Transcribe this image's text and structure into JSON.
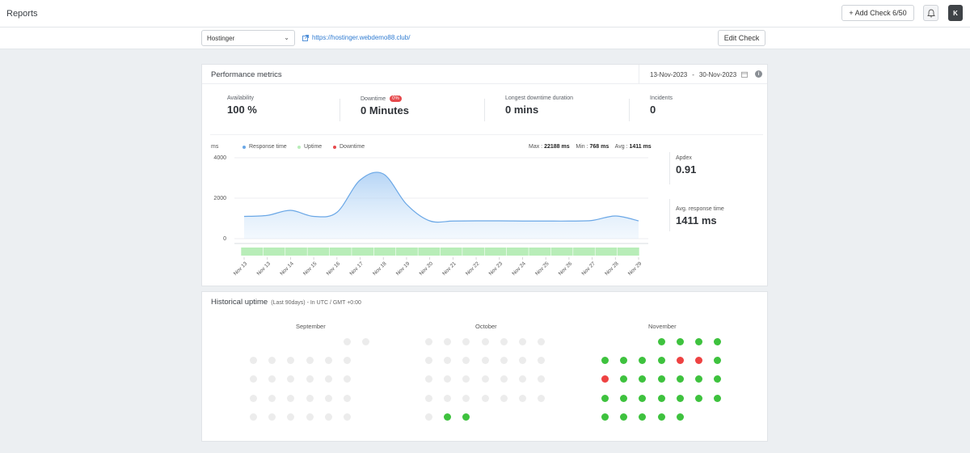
{
  "header": {
    "title": "Reports",
    "add_check_label": "+ Add Check 6/50",
    "avatar_initial": "K"
  },
  "subbar": {
    "monitor_selected": "Hostinger",
    "url": "https://hostinger.webdemo88.club/",
    "edit_label": "Edit Check"
  },
  "performance": {
    "title": "Performance metrics",
    "date_from": "13-Nov-2023",
    "date_sep": "-",
    "date_to": "30-Nov-2023",
    "metrics": [
      {
        "label": "Availability",
        "value": "100 %"
      },
      {
        "label": "Downtime",
        "badge": "0%",
        "value": "0 Minutes"
      },
      {
        "label": "Longest downtime duration",
        "value": "0 mins"
      },
      {
        "label": "Incidents",
        "value": "0"
      }
    ],
    "unit": "ms",
    "legend": [
      "Response time",
      "Uptime",
      "Downtime"
    ],
    "stats": {
      "max_label": "Max :",
      "max": "22188 ms",
      "min_label": "Min :",
      "min": "768 ms",
      "avg_label": "Avg :",
      "avg": "1411 ms"
    },
    "apdex_label": "Apdex",
    "apdex_value": "0.91",
    "avg_label": "Avg. response time",
    "avg_value": "1411 ms"
  },
  "colors": {
    "response": "#6aa7e6",
    "uptime": "#b8edb8",
    "downtime": "#e6494c",
    "green": "#3ec23e",
    "red": "#ee4242",
    "grey": "#ececec"
  },
  "chart_data": {
    "type": "area",
    "ylabel": "ms",
    "ylim": [
      0,
      4000
    ],
    "yticks": [
      "4000",
      "2000",
      "0"
    ],
    "x": [
      "Nov 13",
      "Nov 13",
      "Nov 14",
      "Nov 15",
      "Nov 16",
      "Nov 17",
      "Nov 18",
      "Nov 19",
      "Nov 20",
      "Nov 21",
      "Nov 22",
      "Nov 23",
      "Nov 24",
      "Nov 25",
      "Nov 26",
      "Nov 27",
      "Nov 28",
      "Nov 29"
    ],
    "series": [
      {
        "name": "Response time",
        "values": [
          1100,
          1150,
          1400,
          1100,
          1300,
          2900,
          3200,
          1700,
          880,
          870,
          880,
          880,
          870,
          870,
          870,
          900,
          1120,
          880
        ]
      }
    ],
    "uptime_bar": "Uptime",
    "legend": [
      "Response time",
      "Uptime",
      "Downtime"
    ]
  },
  "history": {
    "title": "Historical uptime",
    "subtitle": "(Last 90days) - In UTC / GMT +0:00",
    "months": [
      {
        "name": "September",
        "rows": [
          [
            "-",
            "-",
            "-",
            "-",
            "-",
            "x",
            "x"
          ],
          [
            "x",
            "x",
            "x",
            "x",
            "x",
            "x",
            "-"
          ],
          [
            "x",
            "x",
            "x",
            "x",
            "x",
            "x",
            "-"
          ],
          [
            "x",
            "x",
            "x",
            "x",
            "x",
            "x",
            "-"
          ],
          [
            "x",
            "x",
            "x",
            "x",
            "x",
            "x",
            "-"
          ]
        ]
      },
      {
        "name": "October",
        "rows": [
          [
            "x",
            "x",
            "x",
            "x",
            "x",
            "x",
            "x"
          ],
          [
            "x",
            "x",
            "x",
            "x",
            "x",
            "x",
            "x"
          ],
          [
            "x",
            "x",
            "x",
            "x",
            "x",
            "x",
            "x"
          ],
          [
            "x",
            "x",
            "x",
            "x",
            "x",
            "x",
            "x"
          ],
          [
            "x",
            "g",
            "g",
            "-",
            "-",
            "-",
            "-"
          ]
        ]
      },
      {
        "name": "November",
        "rows": [
          [
            "-",
            "-",
            "-",
            "g",
            "g",
            "g",
            "g"
          ],
          [
            "g",
            "g",
            "g",
            "g",
            "r",
            "r",
            "g"
          ],
          [
            "r",
            "g",
            "g",
            "g",
            "g",
            "g",
            "g"
          ],
          [
            "g",
            "g",
            "g",
            "g",
            "g",
            "g",
            "g"
          ],
          [
            "g",
            "g",
            "g",
            "g",
            "g",
            "-",
            "-"
          ]
        ]
      }
    ]
  }
}
